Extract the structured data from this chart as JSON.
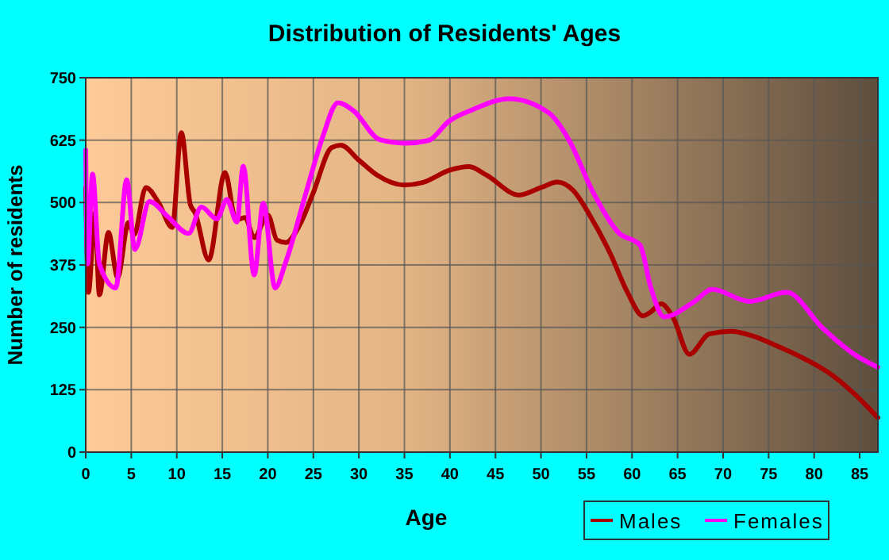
{
  "chart_data": {
    "type": "line",
    "title": "Distribution of Residents' Ages",
    "xlabel": "Age",
    "ylabel": "Number of residents",
    "xlim": [
      0,
      87
    ],
    "xticks": [
      0,
      5,
      10,
      15,
      20,
      25,
      30,
      35,
      40,
      45,
      50,
      55,
      60,
      65,
      70,
      75,
      80,
      85
    ],
    "ylim": [
      0,
      750
    ],
    "yticks": [
      0,
      125,
      250,
      375,
      500,
      625,
      750
    ],
    "grid": true,
    "legend": "bottom right",
    "marker": "none",
    "series": [
      {
        "name": "Males",
        "color": "#aa0000",
        "x": [
          0,
          0.3,
          1,
          1.5,
          2.5,
          3.5,
          4.7,
          5.3,
          6.6,
          8,
          9.5,
          10.5,
          11.5,
          12,
          13.5,
          15.3,
          16.5,
          17.5,
          18.5,
          20,
          21,
          22,
          23.5,
          25,
          27,
          28,
          30,
          32,
          35,
          37,
          40,
          42.1,
          44,
          47.6,
          50,
          51.8,
          53.5,
          55.5,
          57.6,
          59.5,
          61.2,
          62,
          63.2,
          64.5,
          66.3,
          68.5,
          70.9,
          73.2,
          76,
          78.5,
          82,
          84.4,
          87
        ],
        "values": [
          530,
          320,
          480,
          315,
          440,
          350,
          460,
          435,
          530,
          500,
          450,
          640,
          495,
          480,
          385,
          560,
          465,
          470,
          430,
          475,
          425,
          420,
          455,
          520,
          610,
          615,
          585,
          555,
          535,
          540,
          565,
          572,
          555,
          515,
          530,
          541,
          525,
          470,
          398,
          320,
          273,
          280,
          297,
          270,
          196,
          237,
          242,
          233,
          212,
          191,
          154,
          117,
          69
        ]
      },
      {
        "name": "Females",
        "color": "#ff00ff",
        "x": [
          0,
          0.2,
          0.75,
          1.5,
          3.3,
          4.5,
          5.4,
          7,
          9,
          11.3,
          12.7,
          14.4,
          15.5,
          16.6,
          17.3,
          18.5,
          19.5,
          20.8,
          21.9,
          24.2,
          26,
          27.7,
          29.4,
          32.3,
          35.2,
          37.6,
          39.9,
          42.5,
          46.5,
          50.9,
          53.2,
          55.6,
          58.5,
          60.9,
          62,
          63.5,
          66.8,
          68.8,
          72.9,
          77,
          80.9,
          84.4,
          87
        ],
        "values": [
          605,
          377,
          557,
          377,
          329,
          546,
          406,
          502,
          472,
          438,
          491,
          467,
          506,
          461,
          573,
          355,
          499,
          329,
          377,
          520,
          630,
          700,
          684,
          626,
          619,
          624,
          663,
          686,
          708,
          679,
          621,
          525,
          440,
          414,
          334,
          271,
          301,
          326,
          302,
          320,
          249,
          196,
          170
        ]
      }
    ]
  }
}
